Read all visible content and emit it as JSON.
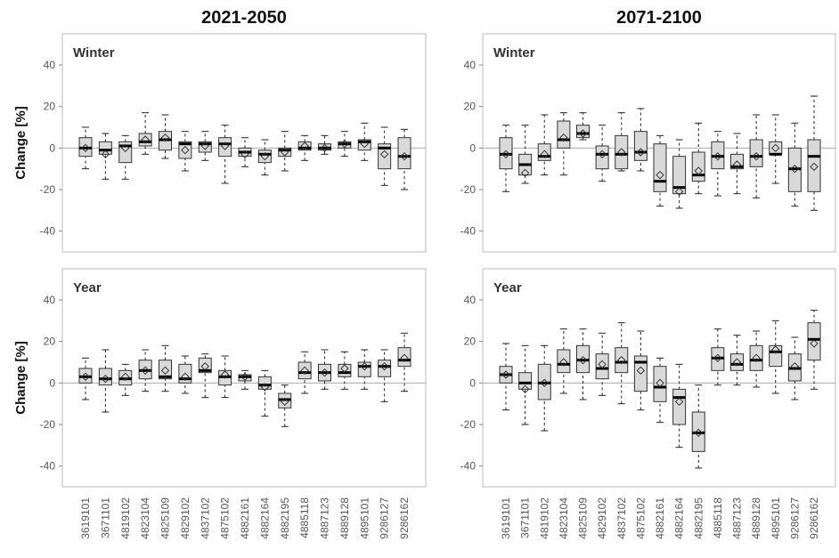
{
  "chart_data": [
    {
      "type": "box",
      "title": "2021-2050",
      "label": "Winter",
      "ylabel": "Change [%]",
      "ylim": [
        -50,
        55
      ],
      "yticks": [
        -40,
        -20,
        0,
        20,
        40
      ],
      "hline": 0,
      "whislo": [
        -10,
        -15,
        -15,
        -3,
        -5,
        -11,
        -6,
        -17,
        -9,
        -13,
        -11,
        -6,
        -3,
        -4,
        -6,
        -18,
        -20
      ],
      "q1": [
        -4,
        -3,
        -7,
        1,
        -1,
        -5,
        -2,
        -4,
        -4,
        -7,
        -4,
        -1,
        -1,
        0,
        -1,
        -10,
        -10
      ],
      "med": [
        0,
        -1,
        1,
        3,
        4,
        2,
        2,
        2,
        -2,
        -3,
        -1,
        0,
        0,
        2,
        3,
        0,
        -4
      ],
      "q3": [
        5,
        3,
        3,
        7,
        8,
        3,
        3,
        5,
        0,
        -1,
        0,
        3,
        2,
        3,
        4,
        2,
        5
      ],
      "whishi": [
        10,
        7,
        6,
        17,
        16,
        8,
        8,
        11,
        5,
        4,
        8,
        6,
        6,
        8,
        12,
        10,
        9
      ],
      "mean": [
        0,
        -3,
        0,
        4,
        5,
        -1,
        1,
        1,
        -3,
        -4,
        -2,
        1,
        0,
        2,
        2,
        -3,
        -4
      ]
    },
    {
      "type": "box",
      "title": "2071-2100",
      "label": "Winter",
      "ylim": [
        -50,
        55
      ],
      "yticks": [
        -40,
        -20,
        0,
        20,
        40
      ],
      "hline": 0,
      "whislo": [
        -21,
        -17,
        -13,
        -13,
        4,
        -16,
        -11,
        -11,
        -28,
        -29,
        -22,
        -23,
        -22,
        -24,
        -17,
        -28,
        -30
      ],
      "q1": [
        -10,
        -13,
        -6,
        0,
        5,
        -10,
        -10,
        -6,
        -21,
        -22,
        -16,
        -10,
        -10,
        -9,
        -3,
        -21,
        -21
      ],
      "med": [
        -3,
        -8,
        -4,
        4,
        7,
        -3,
        -3,
        -2,
        -16,
        -19,
        -13,
        -4,
        -9,
        -4,
        -3,
        -10,
        -4
      ],
      "q3": [
        5,
        -3,
        2,
        13,
        11,
        1,
        6,
        8,
        2,
        -4,
        -2,
        3,
        -3,
        4,
        3,
        0,
        4
      ],
      "whishi": [
        11,
        11,
        16,
        17,
        17,
        11,
        17,
        19,
        6,
        4,
        12,
        8,
        7,
        16,
        16,
        12,
        25
      ],
      "mean": [
        -3,
        -12,
        -3,
        5,
        7,
        -3,
        -2,
        -2,
        -13,
        -21,
        -11,
        -4,
        -8,
        -4,
        0,
        -10,
        -9
      ]
    },
    {
      "type": "box",
      "label": "Year",
      "ylabel": "Change [%]",
      "ylim": [
        -50,
        55
      ],
      "yticks": [
        -40,
        -20,
        0,
        20,
        40
      ],
      "hline": 0,
      "categories": [
        "3619101",
        "3671101",
        "4819102",
        "4823104",
        "4825109",
        "4829102",
        "4837102",
        "4875102",
        "4882161",
        "4882164",
        "4882195",
        "4885118",
        "4887123",
        "4889128",
        "4895101",
        "9286127",
        "9286162"
      ],
      "whislo": [
        -8,
        -14,
        -6,
        -4,
        -4,
        -5,
        -7,
        -7,
        -3,
        -16,
        -21,
        -5,
        -3,
        -3,
        -3,
        -9,
        -4
      ],
      "q1": [
        0,
        -1,
        -1,
        2,
        2,
        0,
        5,
        -1,
        1,
        -3,
        -12,
        2,
        1,
        3,
        3,
        3,
        8
      ],
      "med": [
        3,
        2,
        2,
        6,
        3,
        2,
        6,
        3,
        3,
        -1,
        -8,
        5,
        5,
        5,
        8,
        8,
        11
      ],
      "q3": [
        7,
        7,
        6,
        11,
        11,
        9,
        12,
        6,
        4,
        3,
        -5,
        10,
        9,
        9,
        10,
        11,
        17
      ],
      "whishi": [
        12,
        16,
        9,
        16,
        18,
        13,
        14,
        13,
        6,
        6,
        -1,
        15,
        16,
        15,
        16,
        16,
        24
      ],
      "mean": [
        3,
        2,
        3,
        6,
        6,
        3,
        8,
        4,
        3,
        -2,
        -9,
        6,
        5,
        7,
        8,
        8,
        12
      ]
    },
    {
      "type": "box",
      "label": "Year",
      "ylim": [
        -50,
        55
      ],
      "yticks": [
        -40,
        -20,
        0,
        20,
        40
      ],
      "hline": 0,
      "categories": [
        "3619101",
        "3671101",
        "4819102",
        "4823104",
        "4825109",
        "4829102",
        "4837102",
        "4875102",
        "4882161",
        "4882164",
        "4882195",
        "4885118",
        "4887123",
        "4889128",
        "4895101",
        "9286127",
        "9286162"
      ],
      "whislo": [
        -13,
        -20,
        -23,
        -5,
        -8,
        -6,
        -10,
        -13,
        -19,
        -31,
        -41,
        -1,
        -1,
        -2,
        -5,
        -8,
        -3
      ],
      "q1": [
        0,
        -3,
        -8,
        5,
        5,
        2,
        5,
        -4,
        -9,
        -20,
        -33,
        6,
        6,
        6,
        8,
        1,
        11
      ],
      "med": [
        4,
        0,
        0,
        9,
        11,
        7,
        10,
        10,
        -2,
        -7,
        -24,
        12,
        9,
        11,
        15,
        7,
        21
      ],
      "q3": [
        8,
        5,
        9,
        16,
        18,
        14,
        17,
        13,
        8,
        -3,
        -14,
        17,
        14,
        18,
        18,
        14,
        29
      ],
      "whishi": [
        19,
        18,
        18,
        26,
        26,
        24,
        29,
        25,
        12,
        9,
        -1,
        26,
        23,
        25,
        30,
        22,
        35
      ],
      "mean": [
        4,
        -3,
        0,
        10,
        11,
        9,
        11,
        6,
        0,
        -9,
        -24,
        12,
        10,
        12,
        16,
        8,
        19
      ]
    }
  ]
}
